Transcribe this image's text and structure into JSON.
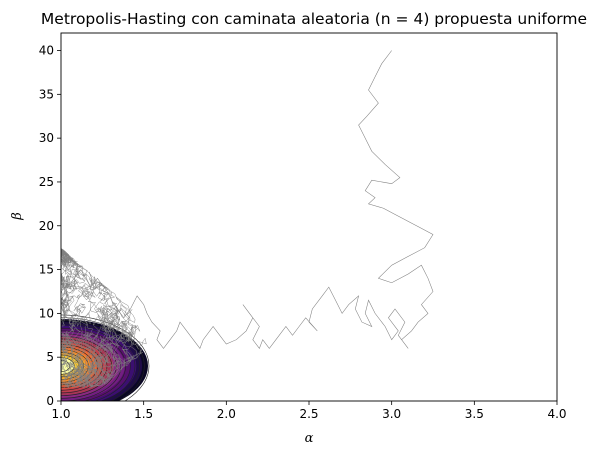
{
  "chart_data": {
    "type": "line",
    "title": "Metropolis-Hasting con caminata aleatoria (n = 4) propuesta uniforme",
    "xlabel": "α",
    "ylabel": "β",
    "xlim": [
      1.0,
      4.0
    ],
    "ylim": [
      0,
      42
    ],
    "xticks": [
      "1.0",
      "1.5",
      "2.0",
      "2.5",
      "3.0",
      "3.5",
      "4.0"
    ],
    "xtick_values": [
      1.0,
      1.5,
      2.0,
      2.5,
      3.0,
      3.5,
      4.0
    ],
    "yticks": [
      "0",
      "5",
      "10",
      "15",
      "20",
      "25",
      "30",
      "35",
      "40"
    ],
    "ytick_values": [
      0,
      5,
      10,
      15,
      20,
      25,
      30,
      35,
      40
    ],
    "grid": false,
    "trace_color": "#808080",
    "contour_line_color": "#222222",
    "colormap": "inferno",
    "posterior_mode": {
      "x": 1.0,
      "y": 4.0
    },
    "trace": {
      "x": [
        3.0,
        2.94,
        2.9,
        2.86,
        2.92,
        2.85,
        2.8,
        2.84,
        2.88,
        2.96,
        3.05,
        3.0,
        2.88,
        2.84,
        2.9,
        2.86,
        2.95,
        3.05,
        3.15,
        3.25,
        3.2,
        3.1,
        3.0,
        2.92,
        3.0,
        3.1,
        3.18,
        3.22,
        3.25,
        3.18,
        3.22,
        3.16,
        3.12,
        3.06,
        3.1,
        3.04,
        3.08,
        3.02,
        2.98,
        3.04,
        3.0,
        2.96,
        2.9,
        2.86,
        2.84,
        2.88,
        2.82,
        2.78,
        2.8,
        2.74,
        2.7,
        2.66,
        2.62,
        2.58,
        2.52,
        2.5,
        2.55,
        2.48,
        2.44,
        2.4,
        2.36,
        2.3,
        2.26,
        2.22,
        2.2,
        2.16,
        2.2,
        2.14,
        2.1,
        2.16,
        2.12,
        2.06,
        2.0,
        1.96,
        1.92,
        1.86,
        1.84,
        1.8,
        1.76,
        1.72,
        1.7,
        1.66,
        1.62,
        1.58,
        1.6,
        1.55,
        1.52,
        1.5,
        1.46,
        1.42,
        1.38,
        1.32,
        1.28,
        1.22,
        1.18,
        1.12,
        1.08,
        1.04
      ],
      "y": [
        40.0,
        38.5,
        37.0,
        35.5,
        34.0,
        32.5,
        31.5,
        30.0,
        28.5,
        27.0,
        25.5,
        24.8,
        25.2,
        24.0,
        23.2,
        22.5,
        22.0,
        21.0,
        20.0,
        19.0,
        17.5,
        16.5,
        15.5,
        14.0,
        13.5,
        14.5,
        15.5,
        14.0,
        12.5,
        11.0,
        10.0,
        9.0,
        8.0,
        7.0,
        6.0,
        7.5,
        9.0,
        10.5,
        9.5,
        8.0,
        7.0,
        8.5,
        10.0,
        11.5,
        10.0,
        8.5,
        9.0,
        10.5,
        12.0,
        11.0,
        10.0,
        11.5,
        13.0,
        12.0,
        10.5,
        9.0,
        8.0,
        9.5,
        8.5,
        7.5,
        8.5,
        7.0,
        6.0,
        7.0,
        6.0,
        7.0,
        8.5,
        10.0,
        11.0,
        9.5,
        8.0,
        7.0,
        6.5,
        7.5,
        8.5,
        7.0,
        6.0,
        7.0,
        8.0,
        9.0,
        8.0,
        7.0,
        6.0,
        7.0,
        8.0,
        9.0,
        10.0,
        11.0,
        12.0,
        10.5,
        9.5,
        11.0,
        12.5,
        14.0,
        13.0,
        15.0,
        14.0,
        13.0
      ]
    }
  }
}
